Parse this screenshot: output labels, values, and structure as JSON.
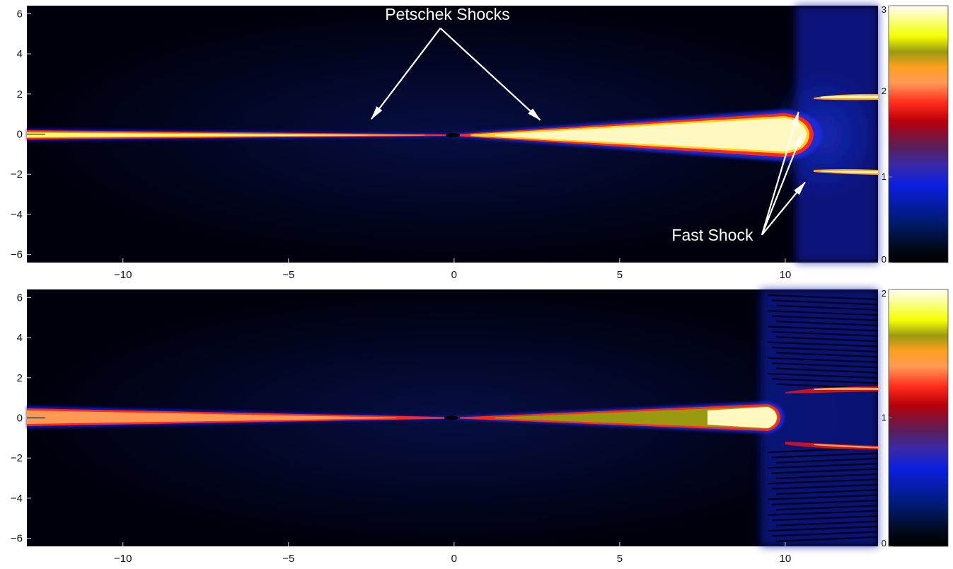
{
  "chart_data": [
    {
      "type": "heatmap",
      "panel": "top",
      "xlim": [
        -12.9,
        12.8
      ],
      "ylim": [
        -6.4,
        6.4
      ],
      "xticks": [
        -10,
        -5,
        0,
        5,
        10
      ],
      "yticks": [
        -6,
        -4,
        -2,
        0,
        2,
        4,
        6
      ],
      "xtick_labels": [
        "−10",
        "−5",
        "0",
        "5",
        "10"
      ],
      "ytick_labels": [
        "−6",
        "−4",
        "−2",
        "0",
        "2",
        "4",
        "6"
      ],
      "colorbar": {
        "range": [
          0,
          3
        ],
        "ticks": [
          0,
          1,
          2,
          3
        ],
        "tick_labels": [
          "0",
          "1",
          "2",
          "3"
        ]
      },
      "features": {
        "left_outflow_jet": {
          "x_start": -12.9,
          "x_end": 0,
          "value": 2.6
        },
        "right_outflow_jet": {
          "x_start": 0,
          "x_end": 10.8,
          "value": 3.0
        },
        "plasmoid_head_x": 10.8,
        "side_jets": {
          "y": [
            1.9,
            -1.8
          ],
          "x_start": 10.6,
          "x_end": 12.8,
          "value": 2.8
        }
      },
      "annotations": [
        {
          "text": "Petschek Shocks",
          "anchor": [
            -0.2,
            5.7
          ],
          "arrow_tips": [
            [
              -2.5,
              0.75
            ],
            [
              2.6,
              0.7
            ]
          ]
        },
        {
          "text": "Fast Shock",
          "anchor": [
            7.8,
            -5.3
          ],
          "arrow_tips": [
            [
              10.4,
              1.1
            ],
            [
              10.5,
              0.0
            ],
            [
              10.6,
              -2.4
            ]
          ]
        }
      ]
    },
    {
      "type": "heatmap",
      "panel": "bottom",
      "xlim": [
        -12.9,
        12.8
      ],
      "ylim": [
        -6.4,
        6.4
      ],
      "xticks": [
        -10,
        -5,
        0,
        5,
        10
      ],
      "yticks": [
        -6,
        -4,
        -2,
        0,
        2,
        4,
        6
      ],
      "xtick_labels": [
        "−10",
        "−5",
        "0",
        "5",
        "10"
      ],
      "ytick_labels": [
        "−6",
        "−4",
        "−2",
        "0",
        "2",
        "4",
        "6"
      ],
      "colorbar": {
        "range": [
          0,
          2
        ],
        "ticks": [
          0,
          1,
          2
        ],
        "tick_labels": [
          "0",
          "1",
          "2"
        ]
      },
      "features": {
        "left_outflow_jet": {
          "x_start": -12.9,
          "x_end": 0,
          "value": 1.2
        },
        "right_outflow_jet": {
          "x_start": 0,
          "x_end": 9.9,
          "value": 2.0
        },
        "plasmoid_head_x": 9.9,
        "side_jets": {
          "y": [
            1.5,
            -1.4
          ],
          "x_start": 10.2,
          "x_end": 12.8,
          "value": 0.9
        }
      },
      "annotations": []
    }
  ],
  "colormap": {
    "name": "heat-rainbow",
    "stops": [
      {
        "t": 0.0,
        "color": "#000000"
      },
      {
        "t": 0.05,
        "color": "#000814"
      },
      {
        "t": 0.15,
        "color": "#001a6a"
      },
      {
        "t": 0.3,
        "color": "#0a1fe0"
      },
      {
        "t": 0.38,
        "color": "#3a2aa8"
      },
      {
        "t": 0.45,
        "color": "#5a1d58"
      },
      {
        "t": 0.55,
        "color": "#b8000a"
      },
      {
        "t": 0.62,
        "color": "#ff2a1a"
      },
      {
        "t": 0.7,
        "color": "#ff9a55"
      },
      {
        "t": 0.76,
        "color": "#ffa020"
      },
      {
        "t": 0.82,
        "color": "#9a9a10"
      },
      {
        "t": 0.88,
        "color": "#f4ff00"
      },
      {
        "t": 1.0,
        "color": "#fffdf8"
      }
    ]
  },
  "colors": {
    "background": "#00000c",
    "annotation": "#ffffff",
    "axis_text": "#111111"
  }
}
